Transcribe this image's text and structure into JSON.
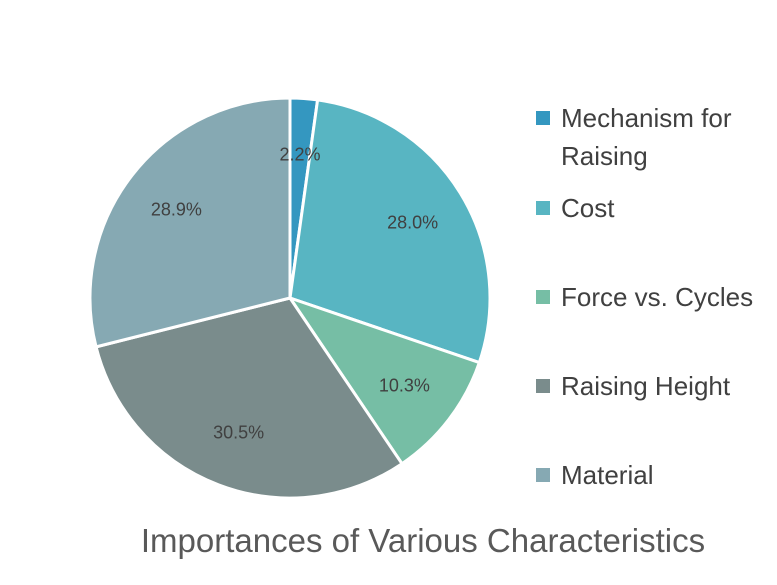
{
  "chart_data": {
    "type": "pie",
    "title": "Importances of Various Characteristics",
    "categories": [
      "Mechanism for Raising",
      "Cost",
      "Force vs. Cycles",
      "Raising Height",
      "Material"
    ],
    "values": [
      2.2,
      28.0,
      10.3,
      30.5,
      28.9
    ],
    "value_labels": [
      "2.2%",
      "28.0%",
      "10.3%",
      "30.5%",
      "28.9%"
    ],
    "colors": [
      "#3497c0",
      "#58b5c2",
      "#76bea5",
      "#7a8c8c",
      "#86a9b3"
    ],
    "legend": {
      "position": "right",
      "entries": [
        [
          "Mechanism for",
          "Raising"
        ],
        [
          "Cost"
        ],
        [
          "Force vs. Cycles"
        ],
        [
          "Raising Height"
        ],
        [
          "Material"
        ]
      ]
    },
    "start_angle": "12 o'clock",
    "direction": "clockwise"
  }
}
